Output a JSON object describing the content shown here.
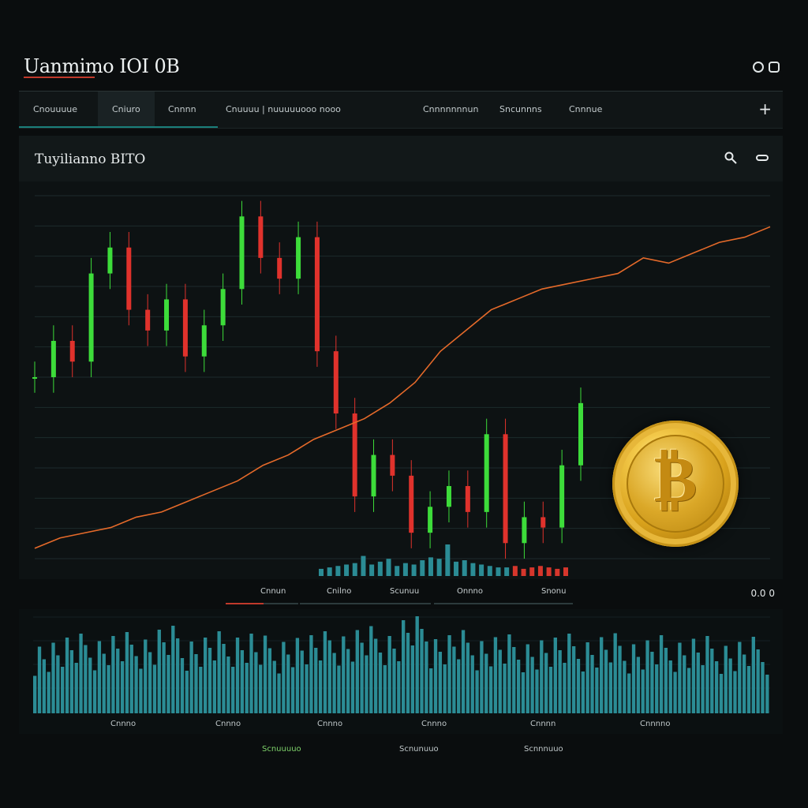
{
  "app": {
    "title": "Uanmimo IOI 0B"
  },
  "nav": {
    "items": [
      {
        "label": "Cnouuuue",
        "active": false
      },
      {
        "label": "Cniuro",
        "active": true
      },
      {
        "label": "Cnnnn",
        "active": false
      },
      {
        "label": "Cnuuuu | nuuuuuooo nooo",
        "active": false
      },
      {
        "label": "Cnnnnnnnun",
        "active": false
      },
      {
        "label": "Sncunnns",
        "active": false
      },
      {
        "label": "Cnnnue",
        "active": false
      }
    ],
    "add_label": "+"
  },
  "panel": {
    "title": "Tuyilianno BITO"
  },
  "timeframes": {
    "items": [
      "Cnnun",
      "Cnilno",
      "Scunuu",
      "Onnno",
      "Snonu"
    ],
    "controls": "0.0 0"
  },
  "bottom_labels": [
    "Cnnno",
    "Cnnno",
    "Cnnno",
    "Cnnno",
    "Cnnnn",
    "Cnnnno"
  ],
  "footer_tabs": [
    {
      "label": "Scnuuuuo",
      "active": true
    },
    {
      "label": "Scnunuuo",
      "active": false
    },
    {
      "label": "Scnnnuuo",
      "active": false
    }
  ],
  "colors": {
    "up": "#3ddc3a",
    "down": "#e0322c",
    "trend": "#e56a2a",
    "volume": "#2b8c95",
    "volume_alt": "#d6362c",
    "grid": "#1d2b2c",
    "accent": "#1a7f7a"
  },
  "icons": {
    "window": [
      "clock-icon",
      "chat-icon"
    ],
    "panel": [
      "search-icon",
      "link-icon"
    ],
    "coin": "bitcoin-coin-icon"
  },
  "chart_data": {
    "type": "line",
    "series": [
      {
        "values": [
          35,
          42,
          38,
          55,
          60,
          48,
          44,
          50,
          39,
          45,
          52,
          66,
          58,
          54,
          62,
          40,
          28,
          12,
          20,
          16,
          5,
          10,
          14,
          9,
          24,
          3,
          8,
          6,
          18,
          30
        ]
      },
      {
        "values": [
          2,
          4,
          5,
          6,
          8,
          9,
          11,
          13,
          15,
          18,
          20,
          23,
          25,
          27,
          30,
          34,
          40,
          44,
          48,
          50,
          52,
          53,
          54,
          55,
          58,
          57,
          59,
          61,
          62,
          64
        ]
      }
    ],
    "volume": [
      5,
      6,
      7,
      8,
      9,
      14,
      8,
      10,
      12,
      7,
      9,
      8,
      11,
      13,
      12,
      22,
      10,
      11,
      9,
      8,
      7,
      6,
      6,
      7,
      5,
      6,
      7,
      6,
      5,
      6
    ],
    "ylim": [
      0,
      70
    ],
    "grid": true
  }
}
